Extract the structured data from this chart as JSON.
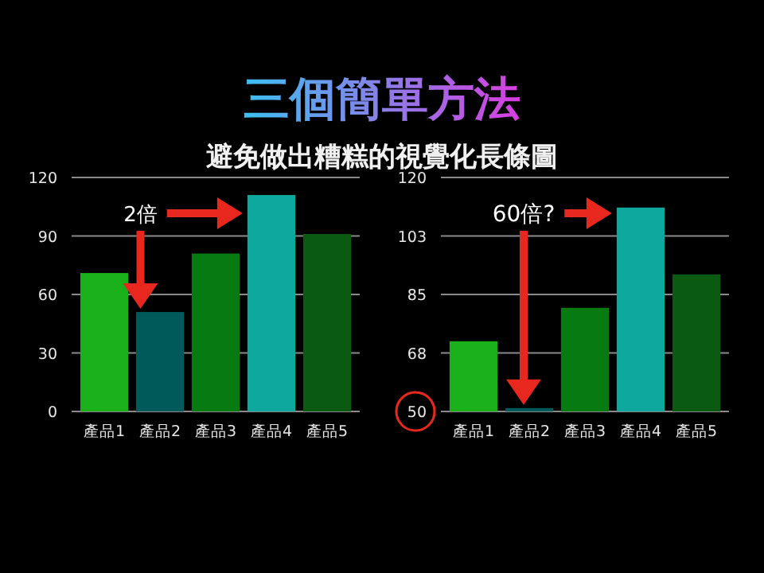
{
  "chart_data": [
    {
      "type": "bar",
      "title": "三個簡單方法",
      "subtitle": "避免做出糟糕的視覺化長條圖",
      "categories": [
        "產品1",
        "產品2",
        "產品3",
        "產品4",
        "產品5"
      ],
      "values": [
        71,
        51,
        81,
        111,
        91
      ],
      "colors": [
        "#1ab01a",
        "#005a5a",
        "#087a12",
        "#0ea89e",
        "#0a5a12"
      ],
      "ylim": [
        0,
        120
      ],
      "yticks": [
        0,
        30,
        60,
        90,
        120
      ],
      "grid": "y",
      "annotations": [
        "2倍"
      ]
    },
    {
      "type": "bar",
      "categories": [
        "產品1",
        "產品2",
        "產品3",
        "產品4",
        "產品5"
      ],
      "values": [
        71,
        51,
        81,
        111,
        91
      ],
      "colors": [
        "#1ab01a",
        "#005a5a",
        "#087a12",
        "#0ea89e",
        "#0a5a12"
      ],
      "ylim": [
        50,
        120
      ],
      "yticks": [
        50,
        {
          "value": 67.5,
          "label": "68"
        },
        85,
        {
          "value": 102.5,
          "label": "103"
        },
        120
      ],
      "grid": "y",
      "annotations": [
        "60倍?"
      ]
    }
  ]
}
